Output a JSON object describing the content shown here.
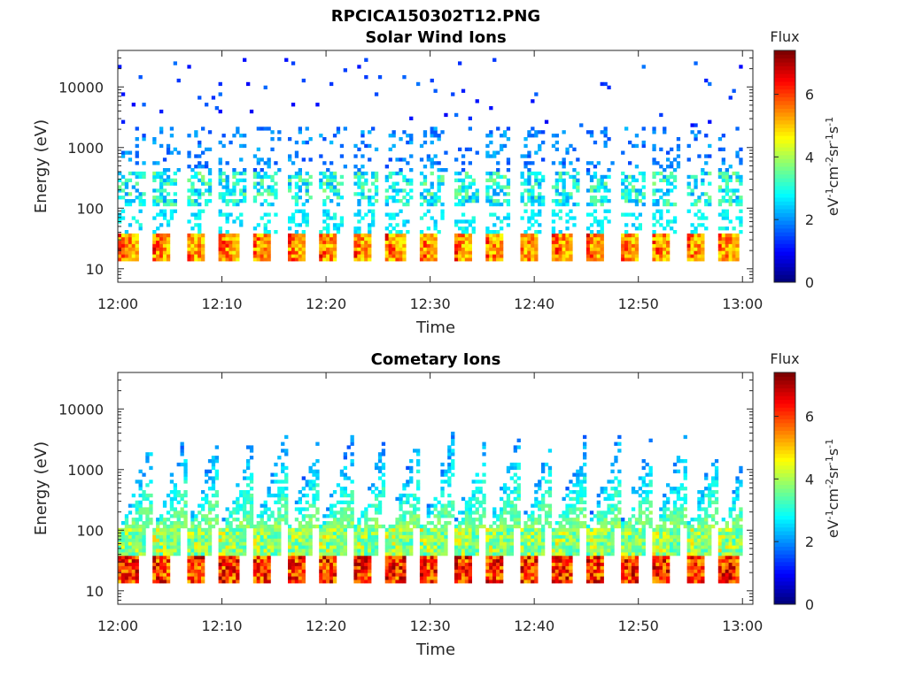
{
  "figure": {
    "title": "RPCICA150302T12.PNG"
  },
  "colormap": {
    "name": "jet",
    "stops": [
      "#00007f",
      "#0000ff",
      "#007fff",
      "#00ffff",
      "#7fff7f",
      "#ffff00",
      "#ff7f00",
      "#ff0000",
      "#7f0000"
    ]
  },
  "chart_data": [
    {
      "type": "heatmap",
      "title": "Solar Wind Ions",
      "xlabel": "Time",
      "ylabel": "Energy (eV)",
      "x_ticks": [
        "12:00",
        "12:10",
        "12:20",
        "12:30",
        "12:40",
        "12:50",
        "13:00"
      ],
      "x_range_minutes": [
        0,
        61
      ],
      "y_scale": "log",
      "y_ticks": [
        "10",
        "100",
        "1000",
        "10000"
      ],
      "y_range": [
        6,
        40000
      ],
      "colorbar": {
        "title": "Flux",
        "label": "eV-1cm-2sr-1s-1",
        "range": [
          0,
          7.4
        ],
        "ticks": [
          "0",
          "2",
          "4",
          "6"
        ]
      },
      "sweep_period_minutes": 3.2,
      "band_peaks": [
        {
          "energy_range": [
            12,
            35
          ],
          "flux_peak": 6.0
        },
        {
          "energy_range": [
            40,
            95
          ],
          "flux_peak": 3.0
        },
        {
          "energy_range": [
            100,
            400
          ],
          "flux_peak": 3.5
        },
        {
          "energy_range": [
            400,
            2000
          ],
          "flux_peak": 2.0
        },
        {
          "energy_range": [
            2000,
            40000
          ],
          "flux_peak": 1.5
        }
      ]
    },
    {
      "type": "heatmap",
      "title": "Cometary Ions",
      "xlabel": "Time",
      "ylabel": "Energy (eV)",
      "x_ticks": [
        "12:00",
        "12:10",
        "12:20",
        "12:30",
        "12:40",
        "12:50",
        "13:00"
      ],
      "x_range_minutes": [
        0,
        61
      ],
      "y_scale": "log",
      "y_ticks": [
        "10",
        "100",
        "1000",
        "10000"
      ],
      "y_range": [
        6,
        40000
      ],
      "colorbar": {
        "title": "Flux",
        "label": "eV-1cm-2sr-1s-1",
        "range": [
          0,
          7.4
        ],
        "ticks": [
          "0",
          "2",
          "4",
          "6"
        ]
      },
      "sweep_period_minutes": 3.2,
      "band_peaks": [
        {
          "energy_range": [
            12,
            35
          ],
          "flux_peak": 7.0
        },
        {
          "energy_range": [
            35,
            100
          ],
          "flux_peak": 5.0
        },
        {
          "energy_range": [
            100,
            600
          ],
          "flux_peak": 3.5
        },
        {
          "energy_range": [
            600,
            8000
          ],
          "flux_peak": 1.5
        }
      ]
    }
  ]
}
